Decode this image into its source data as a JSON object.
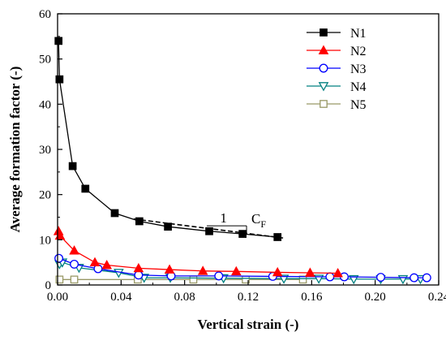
{
  "chart_data": {
    "type": "line",
    "xlabel": "Vertical strain (-)",
    "ylabel": "Average formation factor (-)",
    "xlim": [
      0,
      0.24
    ],
    "ylim": [
      0,
      60
    ],
    "xticks": [
      "0.00",
      "0.04",
      "0.08",
      "0.12",
      "0.16",
      "0.20",
      "0.24"
    ],
    "yticks": [
      "0",
      "10",
      "20",
      "30",
      "40",
      "50",
      "60"
    ],
    "legend_position": "top-right",
    "grid": false,
    "series": [
      {
        "name": "N1",
        "color": "#000000",
        "marker": "square-filled",
        "x": [
          0.0006,
          0.0012,
          0.0095,
          0.0175,
          0.036,
          0.0515,
          0.0695,
          0.0955,
          0.1165,
          0.1385
        ],
        "y": [
          54.0,
          45.5,
          26.3,
          21.3,
          15.9,
          14.1,
          12.9,
          11.9,
          11.3,
          10.6
        ]
      },
      {
        "name": "N2",
        "color": "#ff0000",
        "marker": "triangle-up-filled",
        "x": [
          0.0006,
          0.0015,
          0.0105,
          0.0235,
          0.031,
          0.051,
          0.0705,
          0.0915,
          0.1125,
          0.1385,
          0.159,
          0.1765
        ],
        "y": [
          11.9,
          10.9,
          7.6,
          5.0,
          4.4,
          3.7,
          3.4,
          3.1,
          3.0,
          2.8,
          2.7,
          2.6
        ]
      },
      {
        "name": "N3",
        "color": "#0000ff",
        "marker": "circle-open",
        "x": [
          0.0008,
          0.0105,
          0.0255,
          0.051,
          0.0715,
          0.1015,
          0.1355,
          0.1715,
          0.1805,
          0.2035,
          0.2245,
          0.2325
        ],
        "y": [
          5.9,
          4.6,
          3.6,
          2.2,
          2.0,
          2.0,
          1.9,
          1.8,
          1.8,
          1.7,
          1.6,
          1.6
        ]
      },
      {
        "name": "N4",
        "color": "#008080",
        "marker": "triangle-down-open",
        "x": [
          0.0012,
          0.003,
          0.0135,
          0.0385,
          0.0545,
          0.071,
          0.1045,
          0.1425,
          0.1645,
          0.1865,
          0.2035,
          0.2175,
          0.2285
        ],
        "y": [
          4.6,
          5.0,
          3.8,
          2.7,
          1.6,
          1.6,
          1.5,
          1.4,
          1.4,
          1.3,
          1.3,
          1.3,
          1.3
        ]
      },
      {
        "name": "N5",
        "color": "#999966",
        "marker": "square-open",
        "x": [
          0.0012,
          0.0105,
          0.0505,
          0.0855,
          0.1185,
          0.1545
        ],
        "y": [
          1.2,
          1.2,
          1.2,
          1.2,
          1.2,
          1.2
        ]
      }
    ],
    "annotation": {
      "fit_line_x": [
        0.048,
        0.142
      ],
      "fit_line_y": [
        14.6,
        10.4
      ],
      "slope_triangle_x": [
        0.094,
        0.119
      ],
      "slope_triangle_y": [
        13.1,
        13.1
      ],
      "label_run": "1",
      "label_slope": "C",
      "label_slope_sub": "F"
    }
  }
}
